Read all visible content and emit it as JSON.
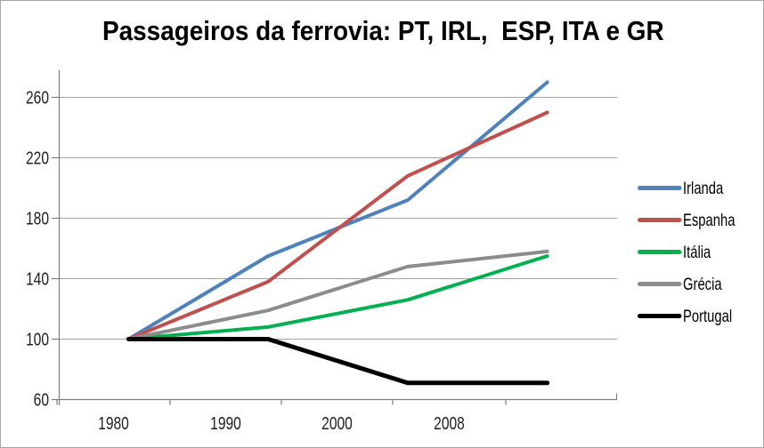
{
  "window": {
    "background": "#ffffff",
    "border_color": "#a6a6a6"
  },
  "chart_data": {
    "type": "line",
    "title": "Passageiros da ferrovia: PT, IRL,  ESP, ITA e GR",
    "categories": [
      "1980",
      "1990",
      "2000",
      "2008"
    ],
    "series": [
      {
        "name": "Irlanda",
        "color": "#4F81BD",
        "values": [
          100,
          155,
          192,
          270
        ]
      },
      {
        "name": "Espanha",
        "color": "#C0504D",
        "values": [
          100,
          138,
          208,
          250
        ]
      },
      {
        "name": "Itália",
        "color": "#00B050",
        "values": [
          100,
          108,
          126,
          155
        ]
      },
      {
        "name": "Grécia",
        "color": "#8C8C8C",
        "values": [
          100,
          119,
          148,
          158
        ]
      },
      {
        "name": "Portugal",
        "color": "#000000",
        "values": [
          100,
          100,
          71,
          71
        ]
      }
    ],
    "y_ticks": [
      60,
      100,
      140,
      180,
      220,
      260
    ],
    "ylim": [
      60,
      278
    ],
    "grid": true,
    "legend_position": "right",
    "axis_color": "#7F7F7F",
    "grid_color": "#A3A3A3",
    "tick_label_color": "#1F1F1F",
    "legend_label_color": "#000000"
  }
}
